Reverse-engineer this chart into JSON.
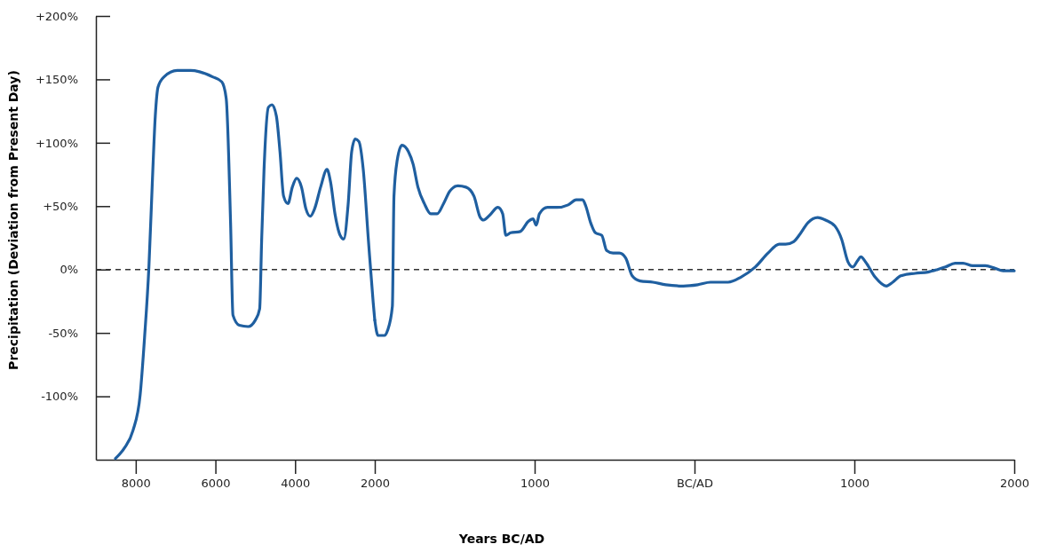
{
  "chart_data": [
    {
      "type": "line",
      "xlabel": "Years BC/AD",
      "ylabel": "Precipitation (Deviation from Present Day)",
      "xlim": [
        -9000,
        -2000
      ],
      "xticks": [
        {
          "value": -8000,
          "label": "8000"
        },
        {
          "value": -6000,
          "label": "6000"
        },
        {
          "value": -4000,
          "label": "4000"
        },
        {
          "value": -2000,
          "label": "2000"
        }
      ],
      "ylim": [
        -150,
        200
      ],
      "yticks": [
        {
          "value": -100,
          "label": "-100%"
        },
        {
          "value": -50,
          "label": "-50%"
        },
        {
          "value": 0,
          "label": "0%"
        },
        {
          "value": 50,
          "label": "+50%"
        },
        {
          "value": 100,
          "label": "+100%"
        },
        {
          "value": 150,
          "label": "+150%"
        },
        {
          "value": 200,
          "label": "+200%"
        }
      ],
      "ref_lines": [
        {
          "axis": "y",
          "value": 0,
          "line_style": "dashed",
          "color": "#333333"
        }
      ],
      "marker": "none",
      "line_style": "solid",
      "series": [
        {
          "color": "#1f5fa0",
          "x": [
            -8510,
            -8290,
            -8070,
            -7890,
            -7780,
            -7670,
            -7580,
            -7510,
            -7440,
            -7290,
            -6960,
            -6620,
            -6400,
            -6070,
            -5840,
            -5730,
            -5620,
            -5560,
            -5400,
            -5180,
            -5000,
            -4890,
            -4840,
            -4780,
            -4670,
            -4580,
            -4470,
            -4380,
            -4290,
            -4180,
            -4070,
            -3960,
            -3840,
            -3730,
            -3620,
            -3510,
            -3360,
            -3200,
            -3110,
            -3000,
            -2870,
            -2780,
            -2670,
            -2580,
            -2490,
            -2400,
            -2290,
            -2160,
            -2040,
            -2000
          ],
          "values": [
            -149,
            -141,
            -127,
            -99,
            -54,
            2,
            72,
            121,
            144,
            152,
            157,
            157,
            156,
            152,
            148,
            135,
            37,
            -36,
            -44,
            -45,
            -40,
            -31,
            23,
            79,
            128,
            130,
            121,
            93,
            58,
            52,
            65,
            72,
            65,
            48,
            42,
            48,
            65,
            79,
            69,
            44,
            27,
            24,
            51,
            93,
            103,
            101,
            79,
            23,
            -26,
            -40
          ]
        }
      ]
    },
    {
      "type": "line",
      "tick_labels": "x",
      "xlim": [
        -2000,
        2000
      ],
      "xticks": [
        {
          "value": -1000,
          "label": "1000"
        },
        {
          "value": 0,
          "label": "BC/AD"
        },
        {
          "value": 1000,
          "label": "1000"
        },
        {
          "value": 2000,
          "label": "2000"
        }
      ],
      "ylim": [
        -150,
        200
      ],
      "ref_lines": [
        {
          "axis": "y",
          "value": 0,
          "line_style": "dashed",
          "color": "#333333"
        }
      ],
      "marker": "none",
      "line_style": "solid",
      "series": [
        {
          "color": "#1f5fa0",
          "x": [
            -2000,
            -1980,
            -1940,
            -1920,
            -1890,
            -1880,
            -1860,
            -1830,
            -1790,
            -1760,
            -1730,
            -1690,
            -1650,
            -1610,
            -1570,
            -1530,
            -1480,
            -1430,
            -1380,
            -1340,
            -1320,
            -1280,
            -1230,
            -1200,
            -1180,
            -1150,
            -1090,
            -1040,
            -1010,
            -990,
            -970,
            -920,
            -860,
            -790,
            -740,
            -700,
            -680,
            -650,
            -620,
            -580,
            -550,
            -510,
            -470,
            -430,
            -390,
            -340,
            -260,
            -180,
            -70,
            20,
            100,
            210,
            290,
            380,
            460,
            530,
            570,
            620,
            660,
            710,
            770,
            820,
            880,
            920,
            960,
            990,
            1020,
            1040,
            1070,
            1130,
            1200,
            1240,
            1290,
            1380,
            1460,
            1520,
            1570,
            1630,
            1680,
            1740,
            1820,
            1880,
            1930,
            2000
          ],
          "values": [
            -40,
            -52,
            -52,
            -48,
            -29,
            58,
            86,
            98,
            93,
            83,
            65,
            52,
            44,
            44,
            52,
            62,
            66,
            65,
            58,
            41,
            39,
            43,
            49,
            44,
            27,
            29,
            30,
            38,
            40,
            35,
            44,
            49,
            49,
            51,
            55,
            55,
            50,
            37,
            29,
            27,
            15,
            13,
            13,
            9,
            -5,
            -9,
            -10,
            -12,
            -13,
            -12,
            -10,
            -10,
            -6,
            2,
            13,
            20,
            20,
            22,
            28,
            37,
            41,
            39,
            34,
            24,
            6,
            2,
            7,
            10,
            6,
            -6,
            -13,
            -10,
            -5,
            -3,
            -2,
            0,
            2,
            5,
            5,
            3,
            3,
            1,
            -1,
            -1
          ]
        }
      ]
    }
  ]
}
